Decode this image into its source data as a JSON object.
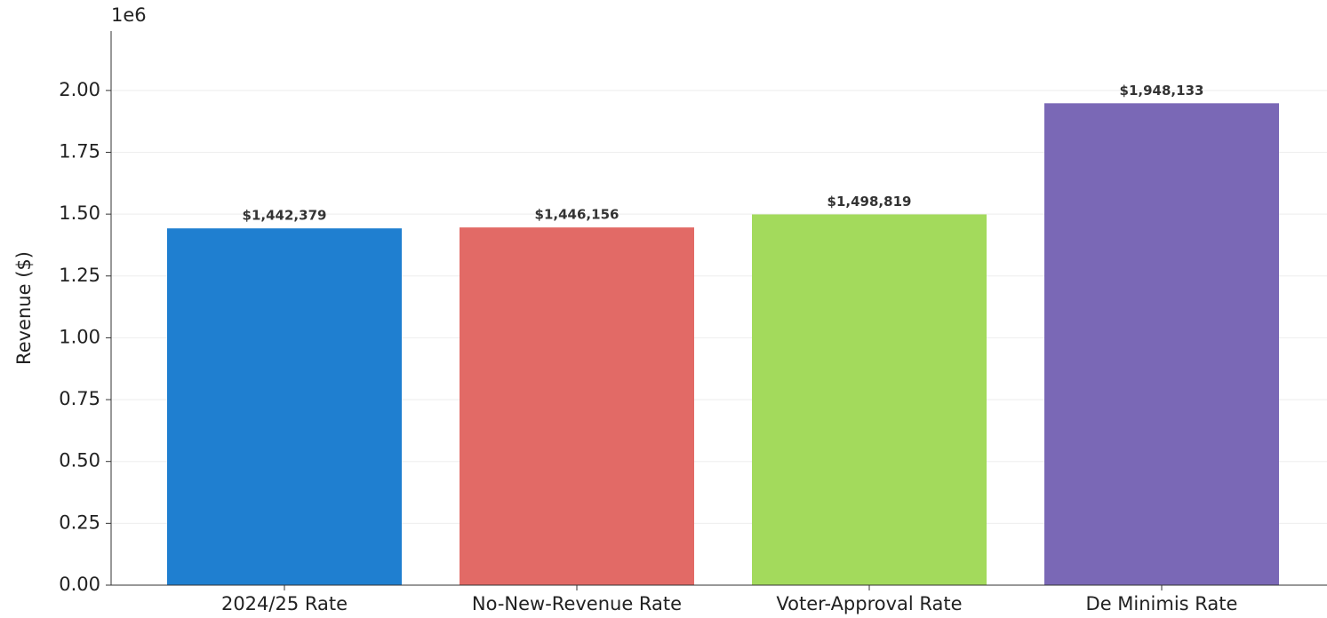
{
  "chart_data": {
    "type": "bar",
    "y_label": "Revenue ($)",
    "y_offset_label": "1e6",
    "categories": [
      "2024/25 Rate",
      "No-New-Revenue Rate",
      "Voter-Approval Rate",
      "De Minimis Rate"
    ],
    "values": [
      1442379,
      1446156,
      1498819,
      1948133
    ],
    "value_labels": [
      "$1,442,379",
      "$1,446,156",
      "$1,498,819",
      "$1,948,133"
    ],
    "colors": [
      "#1f7fd0",
      "#e26a66",
      "#a3da5c",
      "#7a68b6"
    ],
    "ylim": [
      0,
      2240000
    ],
    "yticks": [
      {
        "value": 0,
        "label": "0.00"
      },
      {
        "value": 250000,
        "label": "0.25"
      },
      {
        "value": 500000,
        "label": "0.50"
      },
      {
        "value": 750000,
        "label": "0.75"
      },
      {
        "value": 1000000,
        "label": "1.00"
      },
      {
        "value": 1250000,
        "label": "1.25"
      },
      {
        "value": 1500000,
        "label": "1.50"
      },
      {
        "value": 1750000,
        "label": "1.75"
      },
      {
        "value": 2000000,
        "label": "2.00"
      }
    ],
    "grid": true
  }
}
